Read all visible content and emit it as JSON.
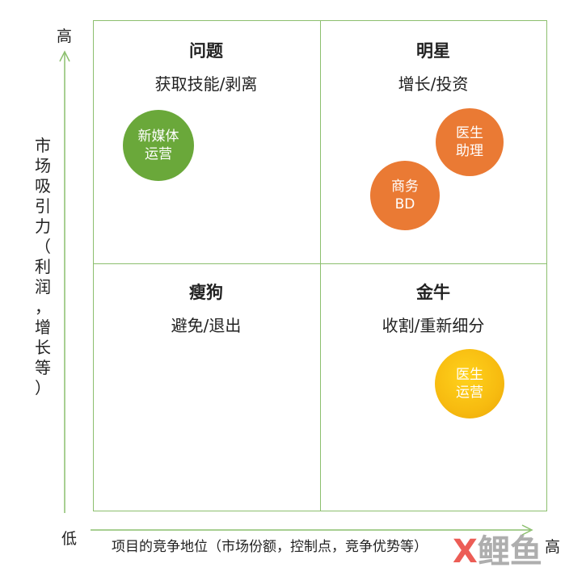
{
  "axes": {
    "y_high": "高",
    "y_label": "市场吸引力（利润，增长等）",
    "y_label_chars": [
      "市",
      "场",
      "吸",
      "引",
      "力",
      "（",
      "利",
      "润",
      "，",
      "增",
      "长",
      "等",
      "）"
    ],
    "x_low": "低",
    "x_high": "高",
    "x_label": "项目的竞争地位（市场份额，控制点，竞争优势等）"
  },
  "quadrants": {
    "top_left": {
      "title": "问题",
      "subtitle": "获取技能/剥离"
    },
    "top_right": {
      "title": "明星",
      "subtitle": "增长/投资"
    },
    "bottom_left": {
      "title": "瘦狗",
      "subtitle": "避免/退出"
    },
    "bottom_right": {
      "title": "金牛",
      "subtitle": "收割/重新细分"
    }
  },
  "bubbles": {
    "new_media": {
      "line1": "新媒体",
      "line2": "运营",
      "color": "#6aa83a"
    },
    "doctor_asst": {
      "line1": "医生",
      "line2": "助理",
      "color": "#ea7a34"
    },
    "business_bd": {
      "line1": "商务",
      "line2": "BD",
      "color": "#ea7a34"
    },
    "doctor_ops": {
      "line1": "医生",
      "line2": "运营",
      "color": "#f7bb10"
    }
  },
  "watermark": {
    "x": "X",
    "rest": "鲤鱼"
  },
  "colors": {
    "grid": "#8cbf6e",
    "arrow": "#8cbf6e"
  }
}
